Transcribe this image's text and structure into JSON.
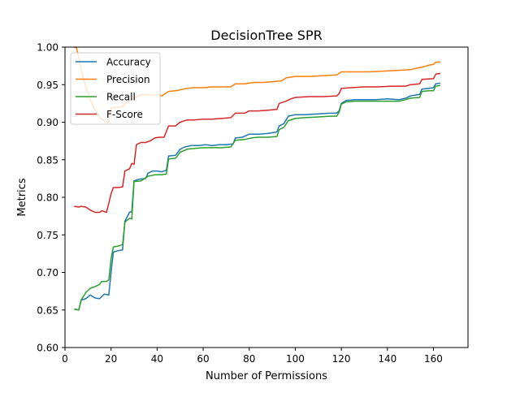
{
  "chart_data": {
    "type": "line",
    "title": "DecisionTree SPR",
    "xlabel": "Number of Permissions",
    "ylabel": "Metrics",
    "xlim": [
      0,
      175
    ],
    "ylim": [
      0.6,
      1.0
    ],
    "xticks": [
      0,
      20,
      40,
      60,
      80,
      100,
      120,
      140,
      160
    ],
    "yticks": [
      0.6,
      0.65,
      0.7,
      0.75,
      0.8,
      0.85,
      0.9,
      0.95,
      1.0
    ],
    "legend_position": "upper-left",
    "grid": false,
    "series": [
      {
        "name": "Accuracy",
        "color": "#1f77b4",
        "points": [
          [
            4,
            0.651
          ],
          [
            6,
            0.65
          ],
          [
            7,
            0.663
          ],
          [
            9,
            0.665
          ],
          [
            11,
            0.67
          ],
          [
            13,
            0.666
          ],
          [
            15,
            0.665
          ],
          [
            17,
            0.671
          ],
          [
            19,
            0.67
          ],
          [
            20,
            0.7
          ],
          [
            21,
            0.727
          ],
          [
            23,
            0.729
          ],
          [
            25,
            0.73
          ],
          [
            26,
            0.768
          ],
          [
            28,
            0.78
          ],
          [
            29,
            0.781
          ],
          [
            30,
            0.822
          ],
          [
            32,
            0.824
          ],
          [
            35,
            0.825
          ],
          [
            36,
            0.832
          ],
          [
            38,
            0.835
          ],
          [
            40,
            0.835
          ],
          [
            42,
            0.834
          ],
          [
            44,
            0.836
          ],
          [
            45,
            0.855
          ],
          [
            48,
            0.856
          ],
          [
            50,
            0.864
          ],
          [
            52,
            0.867
          ],
          [
            55,
            0.869
          ],
          [
            58,
            0.869
          ],
          [
            61,
            0.87
          ],
          [
            64,
            0.869
          ],
          [
            67,
            0.87
          ],
          [
            70,
            0.87
          ],
          [
            73,
            0.871
          ],
          [
            74,
            0.879
          ],
          [
            77,
            0.88
          ],
          [
            80,
            0.884
          ],
          [
            84,
            0.884
          ],
          [
            88,
            0.885
          ],
          [
            92,
            0.887
          ],
          [
            93,
            0.895
          ],
          [
            95,
            0.898
          ],
          [
            97,
            0.908
          ],
          [
            100,
            0.91
          ],
          [
            104,
            0.91
          ],
          [
            110,
            0.911
          ],
          [
            115,
            0.912
          ],
          [
            118,
            0.912
          ],
          [
            119,
            0.915
          ],
          [
            120,
            0.925
          ],
          [
            122,
            0.929
          ],
          [
            126,
            0.93
          ],
          [
            130,
            0.93
          ],
          [
            135,
            0.93
          ],
          [
            140,
            0.931
          ],
          [
            145,
            0.93
          ],
          [
            148,
            0.932
          ],
          [
            150,
            0.935
          ],
          [
            152,
            0.936
          ],
          [
            154,
            0.937
          ],
          [
            155,
            0.944
          ],
          [
            158,
            0.945
          ],
          [
            160,
            0.946
          ],
          [
            161,
            0.951
          ],
          [
            163,
            0.952
          ]
        ]
      },
      {
        "name": "Precision",
        "color": "#ff7f0e",
        "points": [
          [
            4,
            1.0
          ],
          [
            5,
            0.999
          ],
          [
            6,
            0.985
          ],
          [
            7,
            0.97
          ],
          [
            8,
            0.958
          ],
          [
            9,
            0.948
          ],
          [
            10,
            0.938
          ],
          [
            11,
            0.93
          ],
          [
            12,
            0.923
          ],
          [
            13,
            0.917
          ],
          [
            14,
            0.912
          ],
          [
            15,
            0.907
          ],
          [
            16,
            0.904
          ],
          [
            17,
            0.902
          ],
          [
            18,
            0.9
          ],
          [
            19,
            0.899
          ],
          [
            20,
            0.919
          ],
          [
            21,
            0.919
          ],
          [
            23,
            0.92
          ],
          [
            25,
            0.921
          ],
          [
            27,
            0.927
          ],
          [
            29,
            0.93
          ],
          [
            31,
            0.934
          ],
          [
            33,
            0.936
          ],
          [
            35,
            0.937
          ],
          [
            38,
            0.936
          ],
          [
            40,
            0.937
          ],
          [
            42,
            0.935
          ],
          [
            45,
            0.941
          ],
          [
            48,
            0.942
          ],
          [
            50,
            0.943
          ],
          [
            53,
            0.945
          ],
          [
            56,
            0.946
          ],
          [
            60,
            0.946
          ],
          [
            64,
            0.947
          ],
          [
            68,
            0.947
          ],
          [
            72,
            0.947
          ],
          [
            74,
            0.951
          ],
          [
            78,
            0.951
          ],
          [
            82,
            0.953
          ],
          [
            86,
            0.953
          ],
          [
            90,
            0.954
          ],
          [
            94,
            0.955
          ],
          [
            96,
            0.959
          ],
          [
            100,
            0.961
          ],
          [
            106,
            0.961
          ],
          [
            112,
            0.962
          ],
          [
            118,
            0.963
          ],
          [
            120,
            0.967
          ],
          [
            126,
            0.967
          ],
          [
            132,
            0.967
          ],
          [
            138,
            0.968
          ],
          [
            144,
            0.969
          ],
          [
            150,
            0.97
          ],
          [
            153,
            0.972
          ],
          [
            156,
            0.974
          ],
          [
            158,
            0.976
          ],
          [
            160,
            0.977
          ],
          [
            161,
            0.98
          ],
          [
            163,
            0.98
          ]
        ]
      },
      {
        "name": "Recall",
        "color": "#2ca02c",
        "points": [
          [
            4,
            0.651
          ],
          [
            6,
            0.65
          ],
          [
            7,
            0.663
          ],
          [
            9,
            0.673
          ],
          [
            11,
            0.679
          ],
          [
            13,
            0.681
          ],
          [
            15,
            0.684
          ],
          [
            16,
            0.688
          ],
          [
            18,
            0.688
          ],
          [
            19,
            0.69
          ],
          [
            20,
            0.718
          ],
          [
            21,
            0.734
          ],
          [
            23,
            0.735
          ],
          [
            25,
            0.737
          ],
          [
            26,
            0.767
          ],
          [
            28,
            0.772
          ],
          [
            29,
            0.771
          ],
          [
            30,
            0.821
          ],
          [
            33,
            0.822
          ],
          [
            36,
            0.828
          ],
          [
            39,
            0.83
          ],
          [
            42,
            0.83
          ],
          [
            44,
            0.831
          ],
          [
            45,
            0.851
          ],
          [
            48,
            0.852
          ],
          [
            50,
            0.86
          ],
          [
            53,
            0.864
          ],
          [
            56,
            0.865
          ],
          [
            60,
            0.866
          ],
          [
            64,
            0.866
          ],
          [
            68,
            0.866
          ],
          [
            72,
            0.867
          ],
          [
            74,
            0.876
          ],
          [
            78,
            0.877
          ],
          [
            81,
            0.879
          ],
          [
            84,
            0.88
          ],
          [
            88,
            0.88
          ],
          [
            92,
            0.881
          ],
          [
            93,
            0.89
          ],
          [
            95,
            0.893
          ],
          [
            97,
            0.902
          ],
          [
            100,
            0.905
          ],
          [
            104,
            0.906
          ],
          [
            110,
            0.907
          ],
          [
            115,
            0.908
          ],
          [
            118,
            0.908
          ],
          [
            119,
            0.913
          ],
          [
            120,
            0.924
          ],
          [
            122,
            0.927
          ],
          [
            126,
            0.928
          ],
          [
            130,
            0.928
          ],
          [
            135,
            0.928
          ],
          [
            140,
            0.928
          ],
          [
            145,
            0.928
          ],
          [
            148,
            0.93
          ],
          [
            150,
            0.932
          ],
          [
            154,
            0.933
          ],
          [
            155,
            0.941
          ],
          [
            158,
            0.942
          ],
          [
            160,
            0.942
          ],
          [
            161,
            0.948
          ],
          [
            163,
            0.949
          ]
        ]
      },
      {
        "name": "F-Score",
        "color": "#d62728",
        "points": [
          [
            4,
            0.788
          ],
          [
            6,
            0.787
          ],
          [
            7,
            0.788
          ],
          [
            9,
            0.787
          ],
          [
            11,
            0.783
          ],
          [
            13,
            0.78
          ],
          [
            15,
            0.78
          ],
          [
            16,
            0.782
          ],
          [
            18,
            0.78
          ],
          [
            19,
            0.792
          ],
          [
            20,
            0.805
          ],
          [
            21,
            0.813
          ],
          [
            23,
            0.813
          ],
          [
            25,
            0.814
          ],
          [
            26,
            0.835
          ],
          [
            28,
            0.838
          ],
          [
            29,
            0.845
          ],
          [
            30,
            0.844
          ],
          [
            31,
            0.87
          ],
          [
            33,
            0.873
          ],
          [
            35,
            0.873
          ],
          [
            37,
            0.875
          ],
          [
            39,
            0.879
          ],
          [
            41,
            0.88
          ],
          [
            43,
            0.88
          ],
          [
            45,
            0.895
          ],
          [
            48,
            0.895
          ],
          [
            50,
            0.9
          ],
          [
            53,
            0.903
          ],
          [
            56,
            0.903
          ],
          [
            60,
            0.904
          ],
          [
            64,
            0.904
          ],
          [
            68,
            0.905
          ],
          [
            72,
            0.906
          ],
          [
            74,
            0.912
          ],
          [
            78,
            0.912
          ],
          [
            80,
            0.915
          ],
          [
            84,
            0.915
          ],
          [
            88,
            0.916
          ],
          [
            92,
            0.917
          ],
          [
            93,
            0.925
          ],
          [
            96,
            0.928
          ],
          [
            98,
            0.931
          ],
          [
            100,
            0.933
          ],
          [
            106,
            0.934
          ],
          [
            112,
            0.934
          ],
          [
            118,
            0.935
          ],
          [
            119,
            0.938
          ],
          [
            120,
            0.945
          ],
          [
            124,
            0.946
          ],
          [
            130,
            0.947
          ],
          [
            136,
            0.947
          ],
          [
            142,
            0.948
          ],
          [
            148,
            0.948
          ],
          [
            150,
            0.95
          ],
          [
            154,
            0.951
          ],
          [
            155,
            0.957
          ],
          [
            160,
            0.958
          ],
          [
            161,
            0.964
          ],
          [
            163,
            0.965
          ]
        ]
      }
    ]
  }
}
